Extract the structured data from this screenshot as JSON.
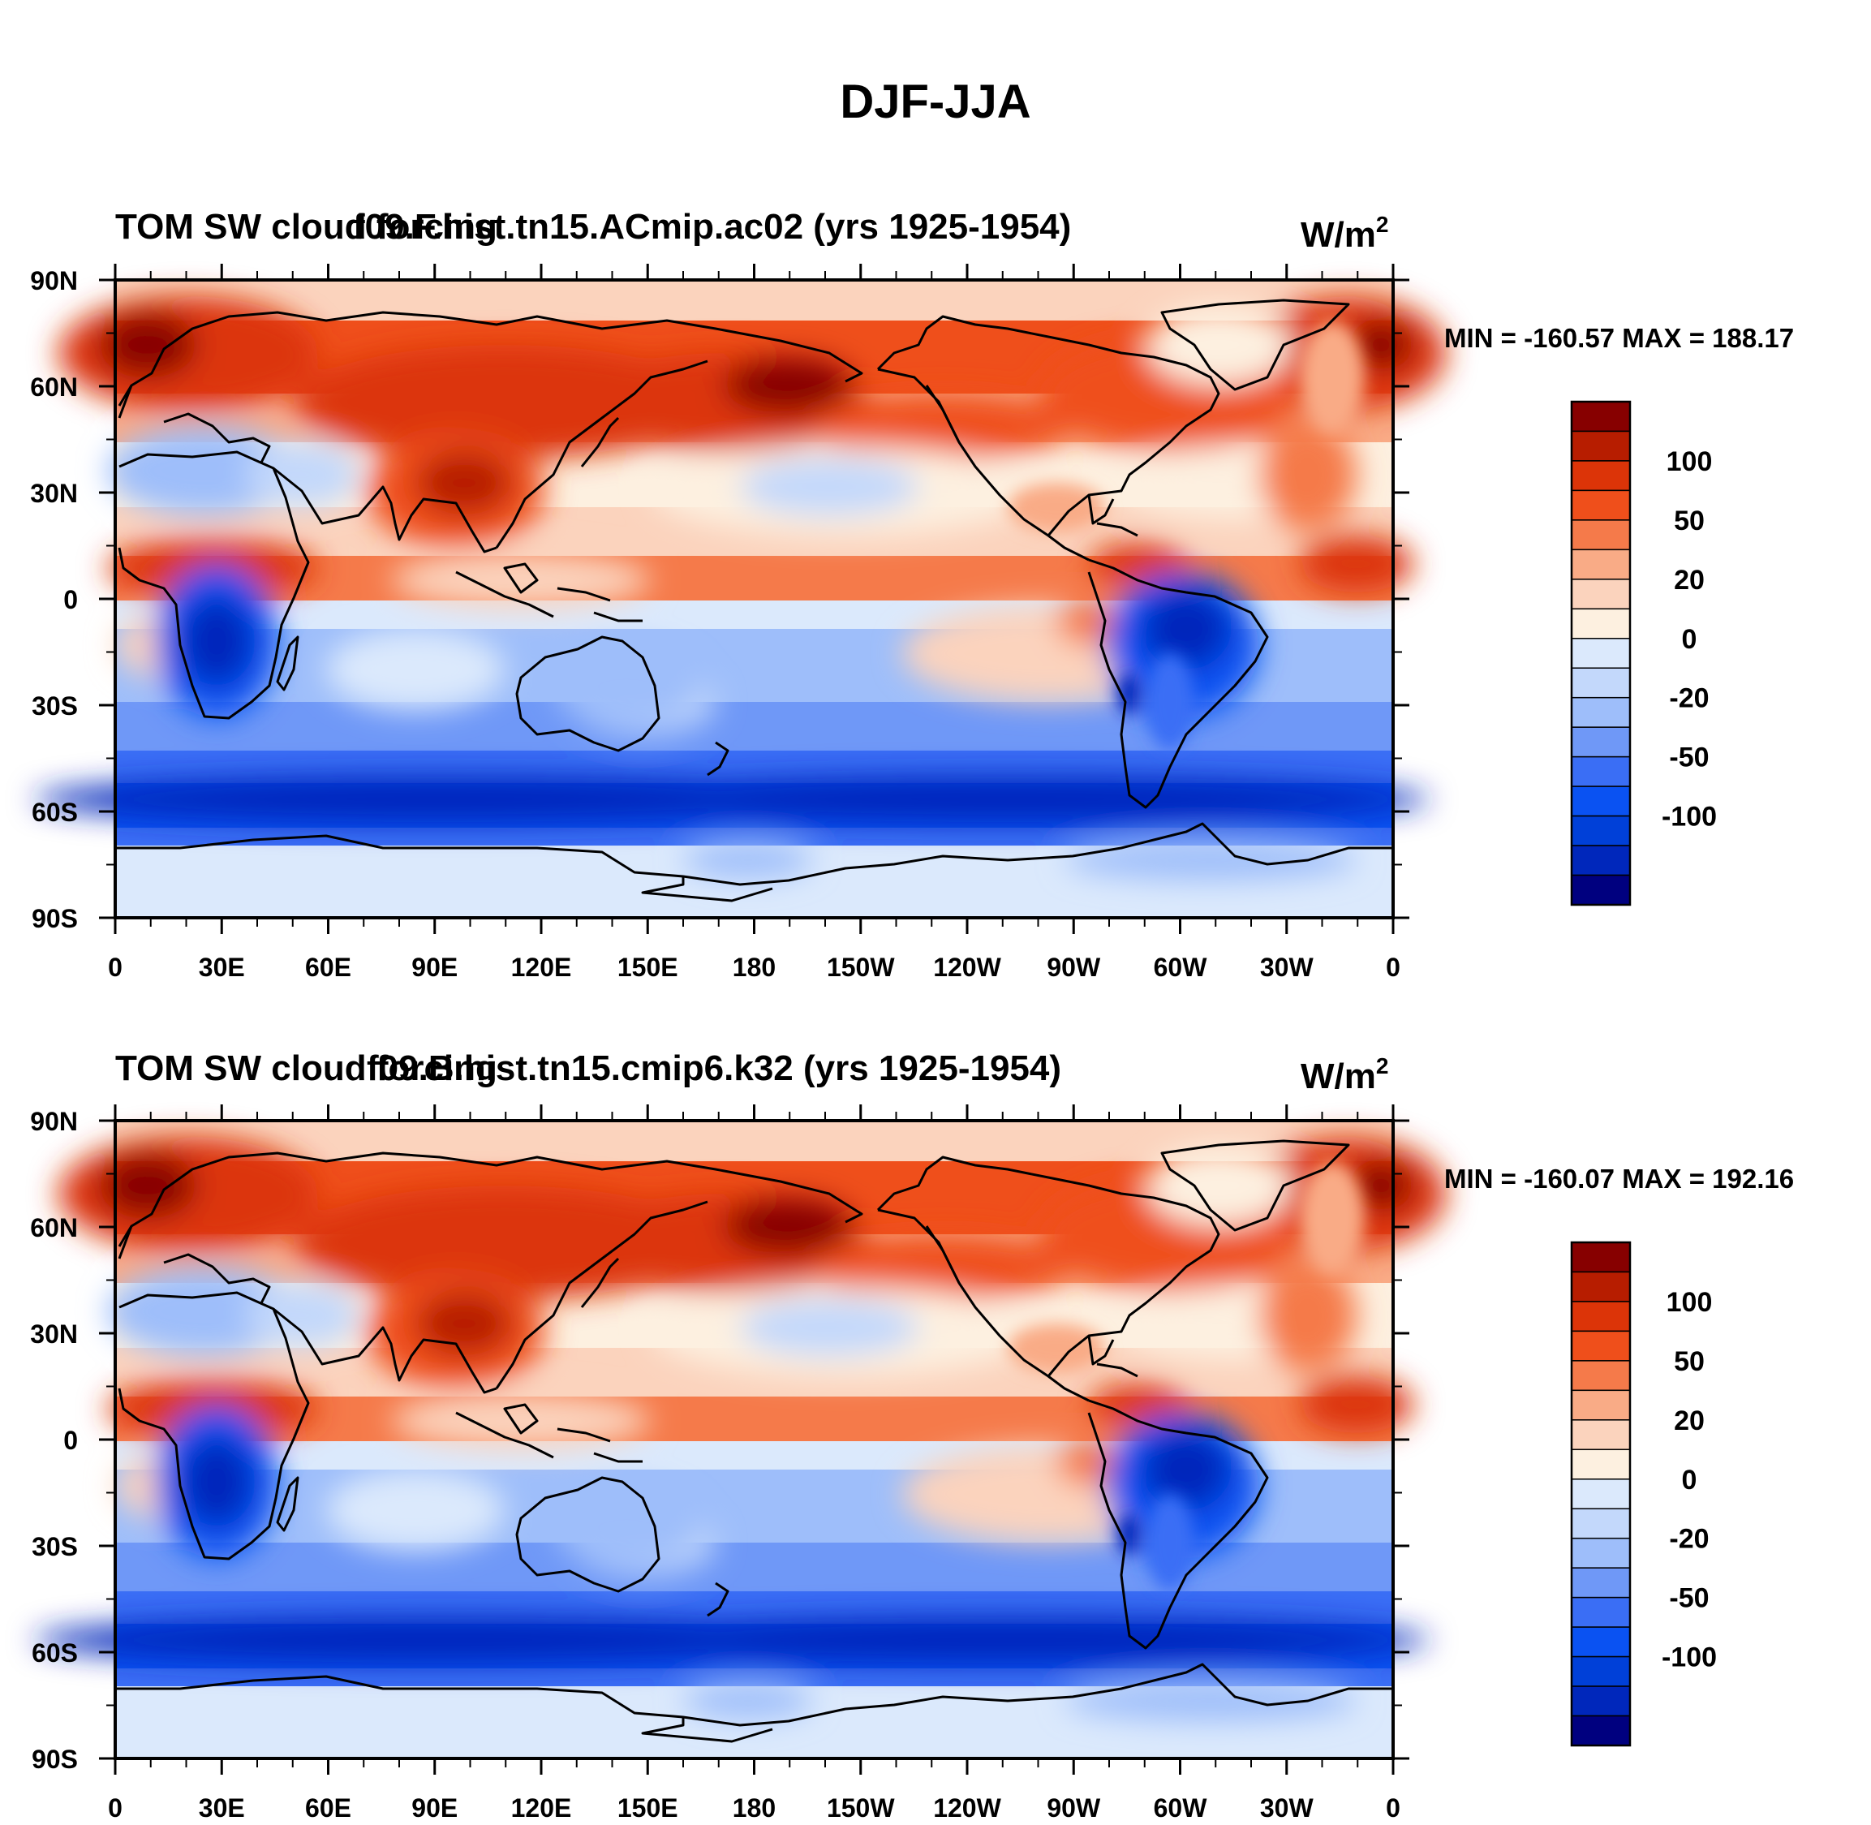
{
  "figure": {
    "title": "DJF-JJA"
  },
  "colorbar": {
    "colors": [
      "#00007f",
      "#0027bb",
      "#0040d8",
      "#0a52f2",
      "#3a6ef5",
      "#6f98f7",
      "#9ebefa",
      "#c3d8fb",
      "#dbe9fc",
      "#fdf0e0",
      "#fbd3bd",
      "#f9ab86",
      "#f57a4a",
      "#ef4f1b",
      "#dc3408",
      "#b71d00",
      "#870000"
    ],
    "labels": [
      "100",
      "50",
      "20",
      "0",
      "-20",
      "-50",
      "-100"
    ]
  },
  "map": {
    "lat_labels": [
      "90N",
      "60N",
      "30N",
      "0",
      "30S",
      "60S",
      "90S"
    ],
    "lon_labels": [
      "0",
      "30E",
      "60E",
      "90E",
      "120E",
      "150E",
      "180",
      "150W",
      "120W",
      "90W",
      "60W",
      "30W",
      "0"
    ]
  },
  "panels": [
    {
      "left_title_a": "TOM SW cloud forcing",
      "left_title_b": "f09.F.hist.tn15.ACmip.ac02 (yrs 1925-1954)",
      "units": "W/m",
      "units_sup": "2",
      "stats": "MIN = -160.57 MAX = 188.17"
    },
    {
      "left_title_a": "TOM SW cloud forcing",
      "left_title_b": "f09.B.hist.tn15.cmip6.k32 (yrs 1925-1954)",
      "units": "W/m",
      "units_sup": "2",
      "stats": "MIN = -160.07 MAX = 192.16"
    }
  ]
}
